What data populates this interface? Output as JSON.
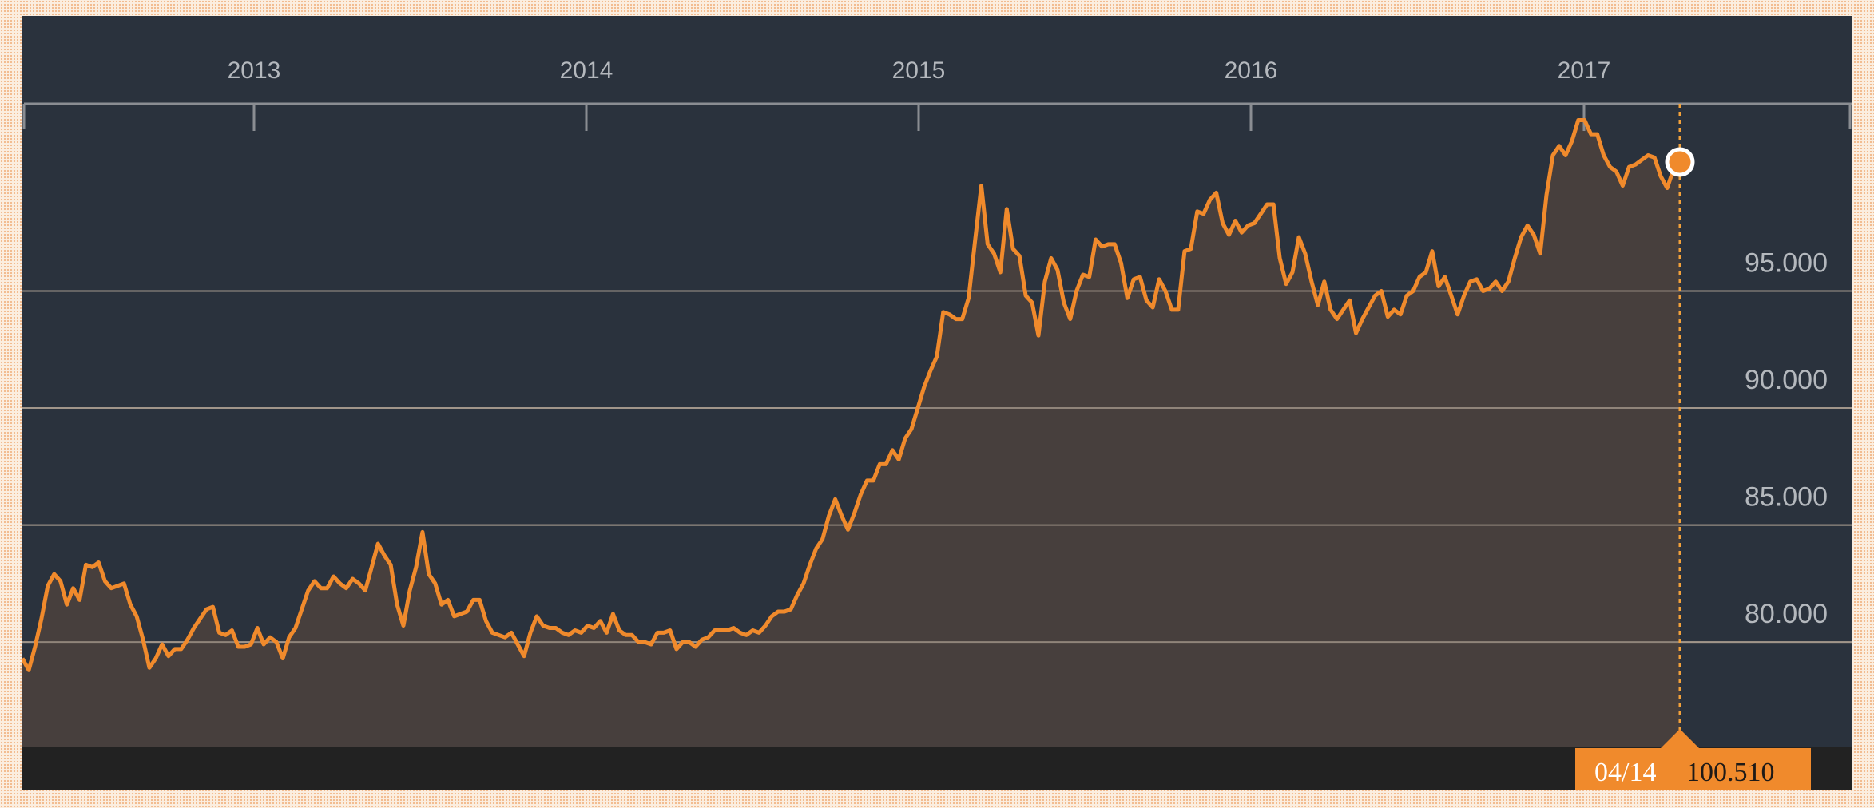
{
  "colors": {
    "background": "#2a323d",
    "line": "#f08a2c",
    "area": "#4a403d",
    "grid": "#8f8680",
    "axis": "#8a8d92",
    "bottom_bar": "#222222",
    "marker": "#f08a2c"
  },
  "tooltip": {
    "date": "04/14",
    "value": "100.510"
  },
  "chart_data": {
    "type": "area",
    "title": "",
    "xlabel": "",
    "ylabel": "",
    "x_ticks": [
      "2013",
      "2014",
      "2015",
      "2016",
      "2017"
    ],
    "y_ticks": [
      "80.000",
      "85.000",
      "90.000",
      "95.000"
    ],
    "ylim": [
      75.5,
      103
    ],
    "grid": true,
    "x_axis_position": "top",
    "y_axis_position": "right",
    "series": [
      {
        "values": [
          79.3,
          78.8,
          79.8,
          81.0,
          82.4,
          82.9,
          82.6,
          81.6,
          82.3,
          81.8,
          83.3,
          83.2,
          83.4,
          82.6,
          82.3,
          82.4,
          82.5,
          81.6,
          81.1,
          80.1,
          78.9,
          79.3,
          79.9,
          79.4,
          79.7,
          79.7,
          80.1,
          80.6,
          81.0,
          81.4,
          81.5,
          80.4,
          80.3,
          80.5,
          79.8,
          79.8,
          79.9,
          80.6,
          79.9,
          80.2,
          80.0,
          79.3,
          80.2,
          80.6,
          81.4,
          82.2,
          82.6,
          82.3,
          82.3,
          82.8,
          82.5,
          82.3,
          82.7,
          82.5,
          82.2,
          83.2,
          84.2,
          83.7,
          83.3,
          81.6,
          80.7,
          82.2,
          83.2,
          84.7,
          82.9,
          82.5,
          81.6,
          81.8,
          81.1,
          81.2,
          81.3,
          81.8,
          81.8,
          80.9,
          80.4,
          80.3,
          80.2,
          80.4,
          79.9,
          79.4,
          80.4,
          81.1,
          80.7,
          80.6,
          80.6,
          80.4,
          80.3,
          80.5,
          80.4,
          80.7,
          80.6,
          80.9,
          80.4,
          81.2,
          80.5,
          80.3,
          80.3,
          80.0,
          80.0,
          79.9,
          80.4,
          80.4,
          80.5,
          79.7,
          80.0,
          80.0,
          79.8,
          80.1,
          80.2,
          80.5,
          80.5,
          80.5,
          80.6,
          80.4,
          80.3,
          80.5,
          80.4,
          80.7,
          81.1,
          81.3,
          81.3,
          81.4,
          82.0,
          82.5,
          83.3,
          84.0,
          84.4,
          85.4,
          86.1,
          85.4,
          84.8,
          85.5,
          86.3,
          86.9,
          86.9,
          87.6,
          87.6,
          88.2,
          87.8,
          88.7,
          89.1,
          90.0,
          90.9,
          91.6,
          92.2,
          94.1,
          94.0,
          93.8,
          93.8,
          94.7,
          97.1,
          99.5,
          97.0,
          96.6,
          95.8,
          98.5,
          96.8,
          96.5,
          94.8,
          94.5,
          93.1,
          95.4,
          96.4,
          95.9,
          94.5,
          93.8,
          95.0,
          95.7,
          95.6,
          97.2,
          96.9,
          97.0,
          97.0,
          96.2,
          94.7,
          95.5,
          95.6,
          94.6,
          94.3,
          95.5,
          95.0,
          94.2,
          94.2,
          96.7,
          96.8,
          98.4,
          98.3,
          98.9,
          99.2,
          97.9,
          97.4,
          98.0,
          97.5,
          97.8,
          97.9,
          98.3,
          98.7,
          98.7,
          96.4,
          95.3,
          95.8,
          97.3,
          96.6,
          95.4,
          94.4,
          95.4,
          94.2,
          93.8,
          94.2,
          94.6,
          93.2,
          93.8,
          94.3,
          94.8,
          95.0,
          93.9,
          94.2,
          94.0,
          94.8,
          95.0,
          95.6,
          95.8,
          96.7,
          95.2,
          95.6,
          94.8,
          94.0,
          94.8,
          95.4,
          95.5,
          95.0,
          95.1,
          95.4,
          95.0,
          95.4,
          96.4,
          97.3,
          97.8,
          97.4,
          96.6,
          99.1,
          100.8,
          101.2,
          100.8,
          101.4,
          102.3,
          102.3,
          101.7,
          101.7,
          100.8,
          100.3,
          100.1,
          99.5,
          100.3,
          100.4,
          100.6,
          100.8,
          100.7,
          99.9,
          99.4,
          100.2,
          100.51
        ]
      }
    ]
  }
}
